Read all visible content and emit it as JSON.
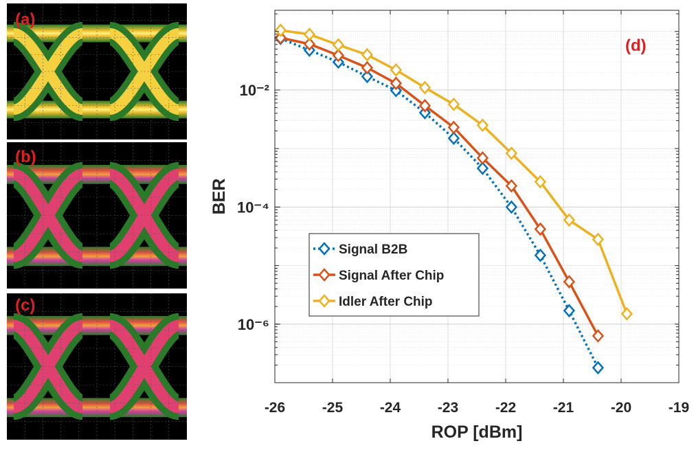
{
  "chart_data": {
    "type": "line",
    "x_label": "ROP [dBm]",
    "y_label": "BER",
    "annotations": [
      "(a)",
      "(b)",
      "(c)",
      "(d)"
    ],
    "x": [
      -25.9,
      -25.4,
      -24.9,
      -24.4,
      -23.9,
      -23.4,
      -22.9,
      -22.4,
      -21.9,
      -21.4,
      -20.9,
      -20.4,
      -19.9
    ],
    "series": [
      {
        "name": "Signal B2B",
        "color": "#0072bd",
        "dash": "dotted",
        "values": [
          0.076,
          0.048,
          0.03,
          0.017,
          0.0098,
          0.0041,
          0.0015,
          0.00046,
          0.0001,
          1.5e-05,
          1.7e-06,
          1.8e-07,
          null
        ]
      },
      {
        "name": "Signal After Chip",
        "color": "#d95319",
        "dash": "solid",
        "values": [
          0.078,
          0.061,
          0.039,
          0.024,
          0.013,
          0.0054,
          0.0023,
          0.00069,
          0.00023,
          4.2e-05,
          5.3e-06,
          6.3e-07,
          null
        ]
      },
      {
        "name": "Idler After Chip",
        "color": "#edb120",
        "dash": "solid",
        "values": [
          0.105,
          0.089,
          0.059,
          0.04,
          0.022,
          0.011,
          0.0057,
          0.0025,
          0.00083,
          0.00027,
          6e-05,
          2.8e-05,
          1.5e-06
        ]
      }
    ],
    "xlim": [
      -26,
      -19
    ],
    "xticks": [
      -26,
      -25,
      -24,
      -23,
      -22,
      -21,
      -20,
      -19
    ],
    "ylim": [
      1e-07,
      0.23
    ],
    "log_y": true,
    "yticks": [
      {
        "value": 1e-06,
        "label": "10⁻⁶"
      },
      {
        "value": 0.0001,
        "label": "10⁻⁴"
      },
      {
        "value": 0.01,
        "label": "10⁻²"
      }
    ],
    "grid": true,
    "legend": "center-left"
  }
}
